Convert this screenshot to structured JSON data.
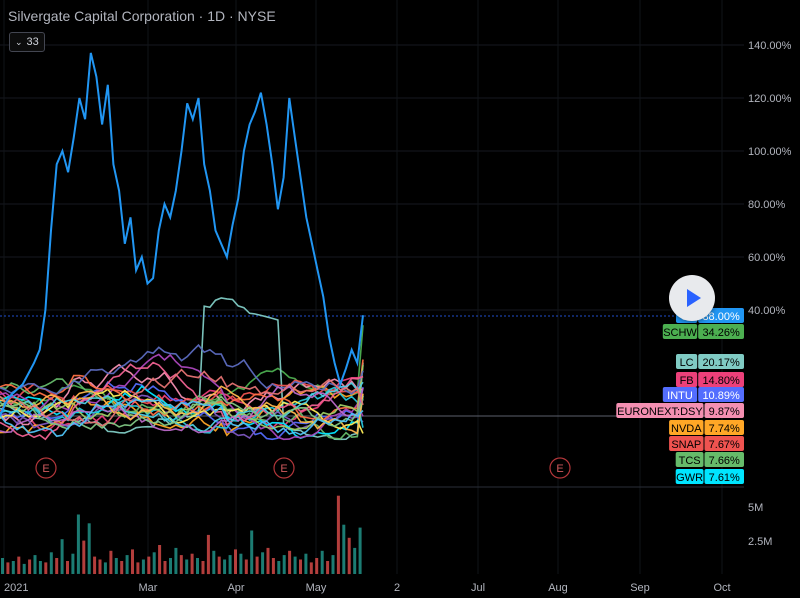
{
  "header": {
    "title": "Silvergate Capital Corporation · 1D · NYSE",
    "indicator_count": "33"
  },
  "colors": {
    "background": "#000000",
    "axis_text": "#b2b5be",
    "up_volume": "#26a69a",
    "down_volume": "#ef5350"
  },
  "icons": {
    "play": "play-icon",
    "collapse": "chevron-down-icon",
    "earnings": "earnings-e-icon"
  },
  "chart_data": {
    "type": "line",
    "title": "Silvergate Capital Corporation · 1D · NYSE",
    "y_axis": {
      "unit": "percent",
      "ylim": [
        -10,
        145
      ],
      "ticks": [
        "140.00%",
        "120.00%",
        "100.00%",
        "80.00%",
        "60.00%",
        "40.00%"
      ]
    },
    "x_axis": {
      "ticks": [
        "2021",
        "Mar",
        "Apr",
        "May",
        "2",
        "Jul",
        "Aug",
        "Sep",
        "Oct"
      ]
    },
    "earnings_markers": [
      "E",
      "E",
      "E"
    ],
    "series_last_values": [
      {
        "name": "SI",
        "value": "38.00%",
        "color": "#2196f3"
      },
      {
        "name": "SCHW",
        "value": "34.26%",
        "color": "#4caf50"
      },
      {
        "name": "LC",
        "value": "20.17%",
        "color": "#80cbc4"
      },
      {
        "name": "FB",
        "value": "14.80%",
        "color": "#ec407a"
      },
      {
        "name": "INTU",
        "value": "10.89%",
        "color": "#536dfe"
      },
      {
        "name": "EURONEXT:DSY",
        "value": "9.87%",
        "color": "#f48fb1"
      },
      {
        "name": "NVDA",
        "value": "7.74%",
        "color": "#ffa726"
      },
      {
        "name": "SNAP",
        "value": "7.67%",
        "color": "#ef5350"
      },
      {
        "name": "TCS",
        "value": "7.66%",
        "color": "#66bb6a"
      },
      {
        "name": "GWR",
        "value": "7.61%",
        "color": "#00e5ff"
      }
    ],
    "si_series": [
      0,
      5,
      8,
      10,
      12,
      16,
      20,
      25,
      40,
      70,
      95,
      100,
      92,
      105,
      120,
      112,
      137,
      128,
      110,
      125,
      95,
      85,
      65,
      75,
      55,
      60,
      50,
      52,
      70,
      80,
      75,
      85,
      100,
      118,
      112,
      120,
      95,
      85,
      70,
      65,
      60,
      72,
      82,
      100,
      110,
      115,
      122,
      110,
      95,
      78,
      90,
      120,
      105,
      90,
      75,
      65,
      55,
      45,
      30,
      20,
      12,
      18,
      25,
      20,
      38
    ],
    "volume_axis": {
      "ticks": [
        "5M",
        "2.5M"
      ]
    },
    "volume": [
      1.1,
      0.8,
      0.9,
      1.2,
      0.7,
      1.0,
      1.3,
      0.9,
      0.8,
      1.5,
      1.1,
      2.4,
      0.9,
      1.4,
      4.1,
      2.3,
      3.5,
      1.2,
      1.0,
      0.8,
      1.6,
      1.1,
      0.9,
      1.3,
      1.7,
      0.8,
      1.0,
      1.2,
      1.5,
      2.0,
      0.9,
      1.1,
      1.8,
      1.3,
      1.0,
      1.4,
      1.1,
      0.9,
      2.7,
      1.6,
      1.2,
      1.0,
      1.3,
      1.7,
      1.4,
      1.0,
      3.0,
      1.2,
      1.5,
      1.8,
      1.1,
      0.9,
      1.3,
      1.6,
      1.2,
      1.0,
      1.4,
      0.8,
      1.1,
      1.6,
      0.9,
      1.3,
      5.4,
      3.4,
      2.5,
      1.8,
      3.2
    ],
    "volume_up": [
      1,
      0,
      1,
      0,
      1,
      0,
      1,
      1,
      0,
      1,
      0,
      1,
      0,
      1,
      1,
      0,
      1,
      0,
      0,
      1,
      0,
      1,
      0,
      1,
      0,
      0,
      1,
      0,
      1,
      0,
      0,
      1,
      1,
      0,
      1,
      0,
      1,
      0,
      0,
      1,
      0,
      1,
      1,
      0,
      1,
      0,
      1,
      0,
      1,
      0,
      0,
      1,
      1,
      0,
      1,
      0,
      1,
      0,
      0,
      1,
      0,
      1,
      0,
      1,
      0,
      1,
      1
    ]
  }
}
